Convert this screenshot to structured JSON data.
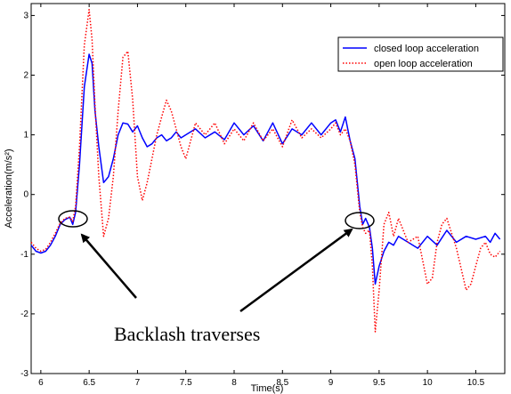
{
  "chart_data": {
    "type": "line",
    "title": "",
    "xlabel": "Time(s)",
    "ylabel": "Acceleration(m/s²)",
    "xlim": [
      5.9,
      10.8
    ],
    "ylim": [
      -3,
      3.2
    ],
    "xticks": [
      6,
      6.5,
      7,
      7.5,
      8,
      8.5,
      9,
      9.5,
      10,
      10.5
    ],
    "xtick_labels": [
      "6",
      "6.5",
      "7",
      "7.5",
      "8",
      "8.5",
      "9",
      "9.5",
      "10",
      "10.5"
    ],
    "yticks": [
      -3,
      -2,
      -1,
      0,
      1,
      2,
      3
    ],
    "ytick_labels": [
      "-3",
      "-2",
      "-1",
      "0",
      "1",
      "2",
      "3"
    ],
    "grid": false,
    "legend_position": "top-right",
    "series": [
      {
        "name": "closed loop acceleration",
        "color": "#0000ff",
        "style": "solid",
        "x": [
          5.9,
          5.95,
          6.0,
          6.05,
          6.1,
          6.15,
          6.2,
          6.25,
          6.3,
          6.33,
          6.36,
          6.4,
          6.45,
          6.5,
          6.53,
          6.56,
          6.6,
          6.65,
          6.7,
          6.75,
          6.8,
          6.85,
          6.9,
          6.95,
          7.0,
          7.05,
          7.1,
          7.15,
          7.2,
          7.25,
          7.3,
          7.35,
          7.4,
          7.45,
          7.5,
          7.6,
          7.7,
          7.8,
          7.9,
          8.0,
          8.1,
          8.2,
          8.3,
          8.4,
          8.5,
          8.6,
          8.7,
          8.8,
          8.9,
          9.0,
          9.05,
          9.1,
          9.15,
          9.2,
          9.25,
          9.3,
          9.33,
          9.36,
          9.4,
          9.43,
          9.46,
          9.5,
          9.55,
          9.6,
          9.65,
          9.7,
          9.8,
          9.9,
          10.0,
          10.1,
          10.2,
          10.3,
          10.4,
          10.5,
          10.6,
          10.65,
          10.7,
          10.75
        ],
        "y": [
          -0.85,
          -0.95,
          -0.98,
          -0.95,
          -0.85,
          -0.7,
          -0.5,
          -0.42,
          -0.38,
          -0.5,
          -0.3,
          0.5,
          1.8,
          2.35,
          2.2,
          1.4,
          0.8,
          0.2,
          0.3,
          0.6,
          1.0,
          1.2,
          1.18,
          1.05,
          1.15,
          0.95,
          0.8,
          0.85,
          0.95,
          1.0,
          0.9,
          0.95,
          1.05,
          0.95,
          1.0,
          1.1,
          0.95,
          1.05,
          0.92,
          1.2,
          1.0,
          1.15,
          0.9,
          1.2,
          0.85,
          1.1,
          1.0,
          1.2,
          1.0,
          1.2,
          1.25,
          1.05,
          1.3,
          0.9,
          0.6,
          -0.2,
          -0.5,
          -0.4,
          -0.55,
          -0.9,
          -1.5,
          -1.2,
          -0.95,
          -0.8,
          -0.85,
          -0.7,
          -0.8,
          -0.9,
          -0.7,
          -0.85,
          -0.6,
          -0.8,
          -0.7,
          -0.75,
          -0.7,
          -0.8,
          -0.65,
          -0.75
        ]
      },
      {
        "name": "open loop acceleration",
        "color": "#ff0000",
        "style": "dotted",
        "x": [
          5.9,
          5.95,
          6.0,
          6.05,
          6.1,
          6.15,
          6.2,
          6.25,
          6.3,
          6.33,
          6.36,
          6.4,
          6.45,
          6.5,
          6.53,
          6.56,
          6.6,
          6.65,
          6.7,
          6.75,
          6.8,
          6.85,
          6.9,
          6.95,
          7.0,
          7.05,
          7.1,
          7.15,
          7.2,
          7.25,
          7.3,
          7.35,
          7.4,
          7.45,
          7.5,
          7.6,
          7.7,
          7.8,
          7.9,
          8.0,
          8.1,
          8.2,
          8.3,
          8.4,
          8.5,
          8.6,
          8.7,
          8.8,
          8.9,
          9.0,
          9.05,
          9.1,
          9.15,
          9.2,
          9.25,
          9.3,
          9.33,
          9.36,
          9.4,
          9.43,
          9.46,
          9.5,
          9.55,
          9.6,
          9.65,
          9.7,
          9.75,
          9.8,
          9.9,
          10.0,
          10.05,
          10.1,
          10.15,
          10.2,
          10.3,
          10.4,
          10.45,
          10.5,
          10.55,
          10.6,
          10.65,
          10.7,
          10.75
        ],
        "y": [
          -0.8,
          -0.9,
          -0.95,
          -0.92,
          -0.8,
          -0.65,
          -0.48,
          -0.4,
          -0.38,
          -0.45,
          -0.2,
          0.8,
          2.5,
          3.1,
          2.6,
          1.5,
          0.3,
          -0.7,
          -0.4,
          0.3,
          1.4,
          2.3,
          2.4,
          1.6,
          0.3,
          -0.1,
          0.2,
          0.6,
          1.0,
          1.3,
          1.58,
          1.4,
          1.1,
          0.8,
          0.6,
          1.2,
          1.0,
          1.2,
          0.85,
          1.1,
          0.9,
          1.2,
          0.9,
          1.1,
          0.8,
          1.25,
          0.95,
          1.1,
          0.95,
          1.1,
          1.2,
          1.0,
          1.1,
          0.9,
          0.5,
          -0.3,
          -0.55,
          -0.65,
          -0.6,
          -1.2,
          -2.3,
          -1.6,
          -0.5,
          -0.3,
          -0.7,
          -0.4,
          -0.6,
          -0.8,
          -0.7,
          -1.5,
          -1.4,
          -0.8,
          -0.5,
          -0.4,
          -0.9,
          -1.6,
          -1.5,
          -1.2,
          -0.9,
          -0.8,
          -1.0,
          -1.05,
          -0.95
        ]
      }
    ],
    "annotations": {
      "text": "Backlash traverses"
    }
  }
}
